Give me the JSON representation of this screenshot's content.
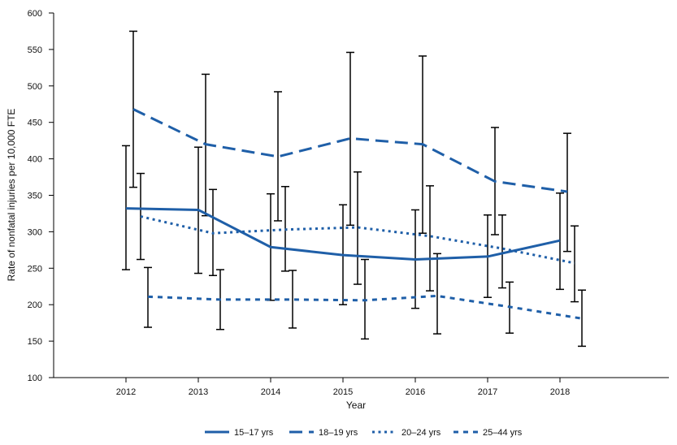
{
  "chart_data": {
    "type": "line",
    "xlabel": "Year",
    "ylabel": "Rate of nonfatal injuries per 10,000 FTE",
    "x": [
      "2012",
      "2013",
      "2014",
      "2015",
      "2016",
      "2017",
      "2018"
    ],
    "ylim": [
      100,
      600
    ],
    "yticks": [
      100,
      150,
      200,
      250,
      300,
      350,
      400,
      450,
      500,
      550,
      600
    ],
    "grid": false,
    "legend_position": "bottom",
    "error_bars": true,
    "series": [
      {
        "name": "15–17 yrs",
        "style": "solid",
        "color": "#1f5fa8",
        "values": [
          332,
          330,
          279,
          268,
          262,
          266,
          288
        ],
        "lower": [
          248,
          243,
          206,
          200,
          195,
          210,
          221
        ],
        "upper": [
          418,
          416,
          352,
          337,
          330,
          323,
          353
        ]
      },
      {
        "name": "18–19 yrs",
        "style": "dashed",
        "color": "#1f5fa8",
        "values": [
          468,
          420,
          403,
          428,
          420,
          369,
          355
        ],
        "lower": [
          361,
          322,
          315,
          309,
          298,
          296,
          273
        ],
        "upper": [
          575,
          516,
          492,
          546,
          541,
          443,
          435
        ]
      },
      {
        "name": "20–24 yrs",
        "style": "dotted",
        "color": "#1f5fa8",
        "values": [
          321,
          298,
          303,
          306,
          294,
          277,
          257
        ],
        "lower": [
          262,
          240,
          246,
          228,
          219,
          223,
          204
        ],
        "upper": [
          380,
          358,
          362,
          382,
          363,
          323,
          308
        ]
      },
      {
        "name": "25–44 yrs",
        "style": "dashed-short",
        "color": "#1f5fa8",
        "values": [
          211,
          207,
          207,
          206,
          212,
          197,
          181
        ],
        "lower": [
          169,
          166,
          168,
          153,
          160,
          161,
          143
        ],
        "upper": [
          251,
          248,
          247,
          262,
          270,
          231,
          220
        ]
      }
    ]
  }
}
